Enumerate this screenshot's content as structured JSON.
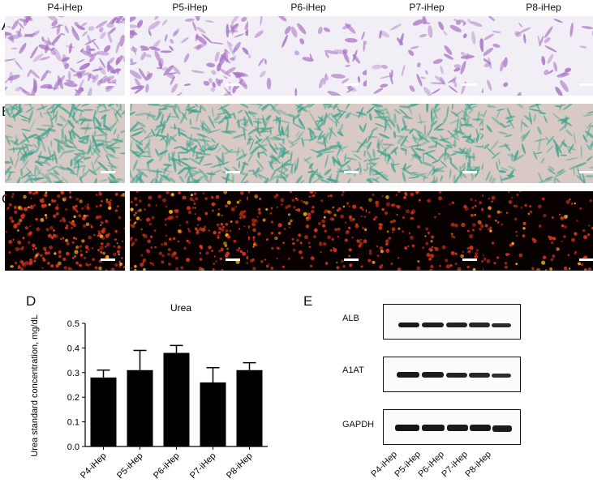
{
  "panels": {
    "A": "A",
    "B": "B",
    "C": "C",
    "D": "D",
    "E": "E"
  },
  "columns": [
    "P4-iHep",
    "P5-iHep",
    "P6-iHep",
    "P7-iHep",
    "P8-iHep"
  ],
  "row_styles": {
    "A": {
      "background": "#f2eef5",
      "cell": "#a874c6"
    },
    "B": {
      "background": "#d9c9c4",
      "cell": "#3fa58f"
    },
    "C": {
      "background": "#080000",
      "cell": "#d43418"
    }
  },
  "chart_data": {
    "type": "bar",
    "title": "Urea",
    "ylabel": "Urea standard concentration, mg/dL",
    "xlabel": "",
    "categories": [
      "P4-iHep",
      "P5-iHep",
      "P6-iHep",
      "P7-iHep",
      "P8-iHep"
    ],
    "values": [
      0.28,
      0.31,
      0.38,
      0.26,
      0.31
    ],
    "errors": [
      0.03,
      0.08,
      0.03,
      0.06,
      0.03
    ],
    "ylim": [
      0,
      0.5
    ],
    "yticks": [
      "0.5",
      "0.4",
      "0.3",
      "0.2",
      "0.1",
      "0.0"
    ],
    "bar_color": "#000000"
  },
  "western_blot": {
    "bands": [
      "ALB",
      "A1AT",
      "GAPDH"
    ],
    "lanes": [
      "P4-iHep",
      "P5-iHep",
      "P6-iHep",
      "P7-iHep",
      "P8-iHep"
    ]
  }
}
